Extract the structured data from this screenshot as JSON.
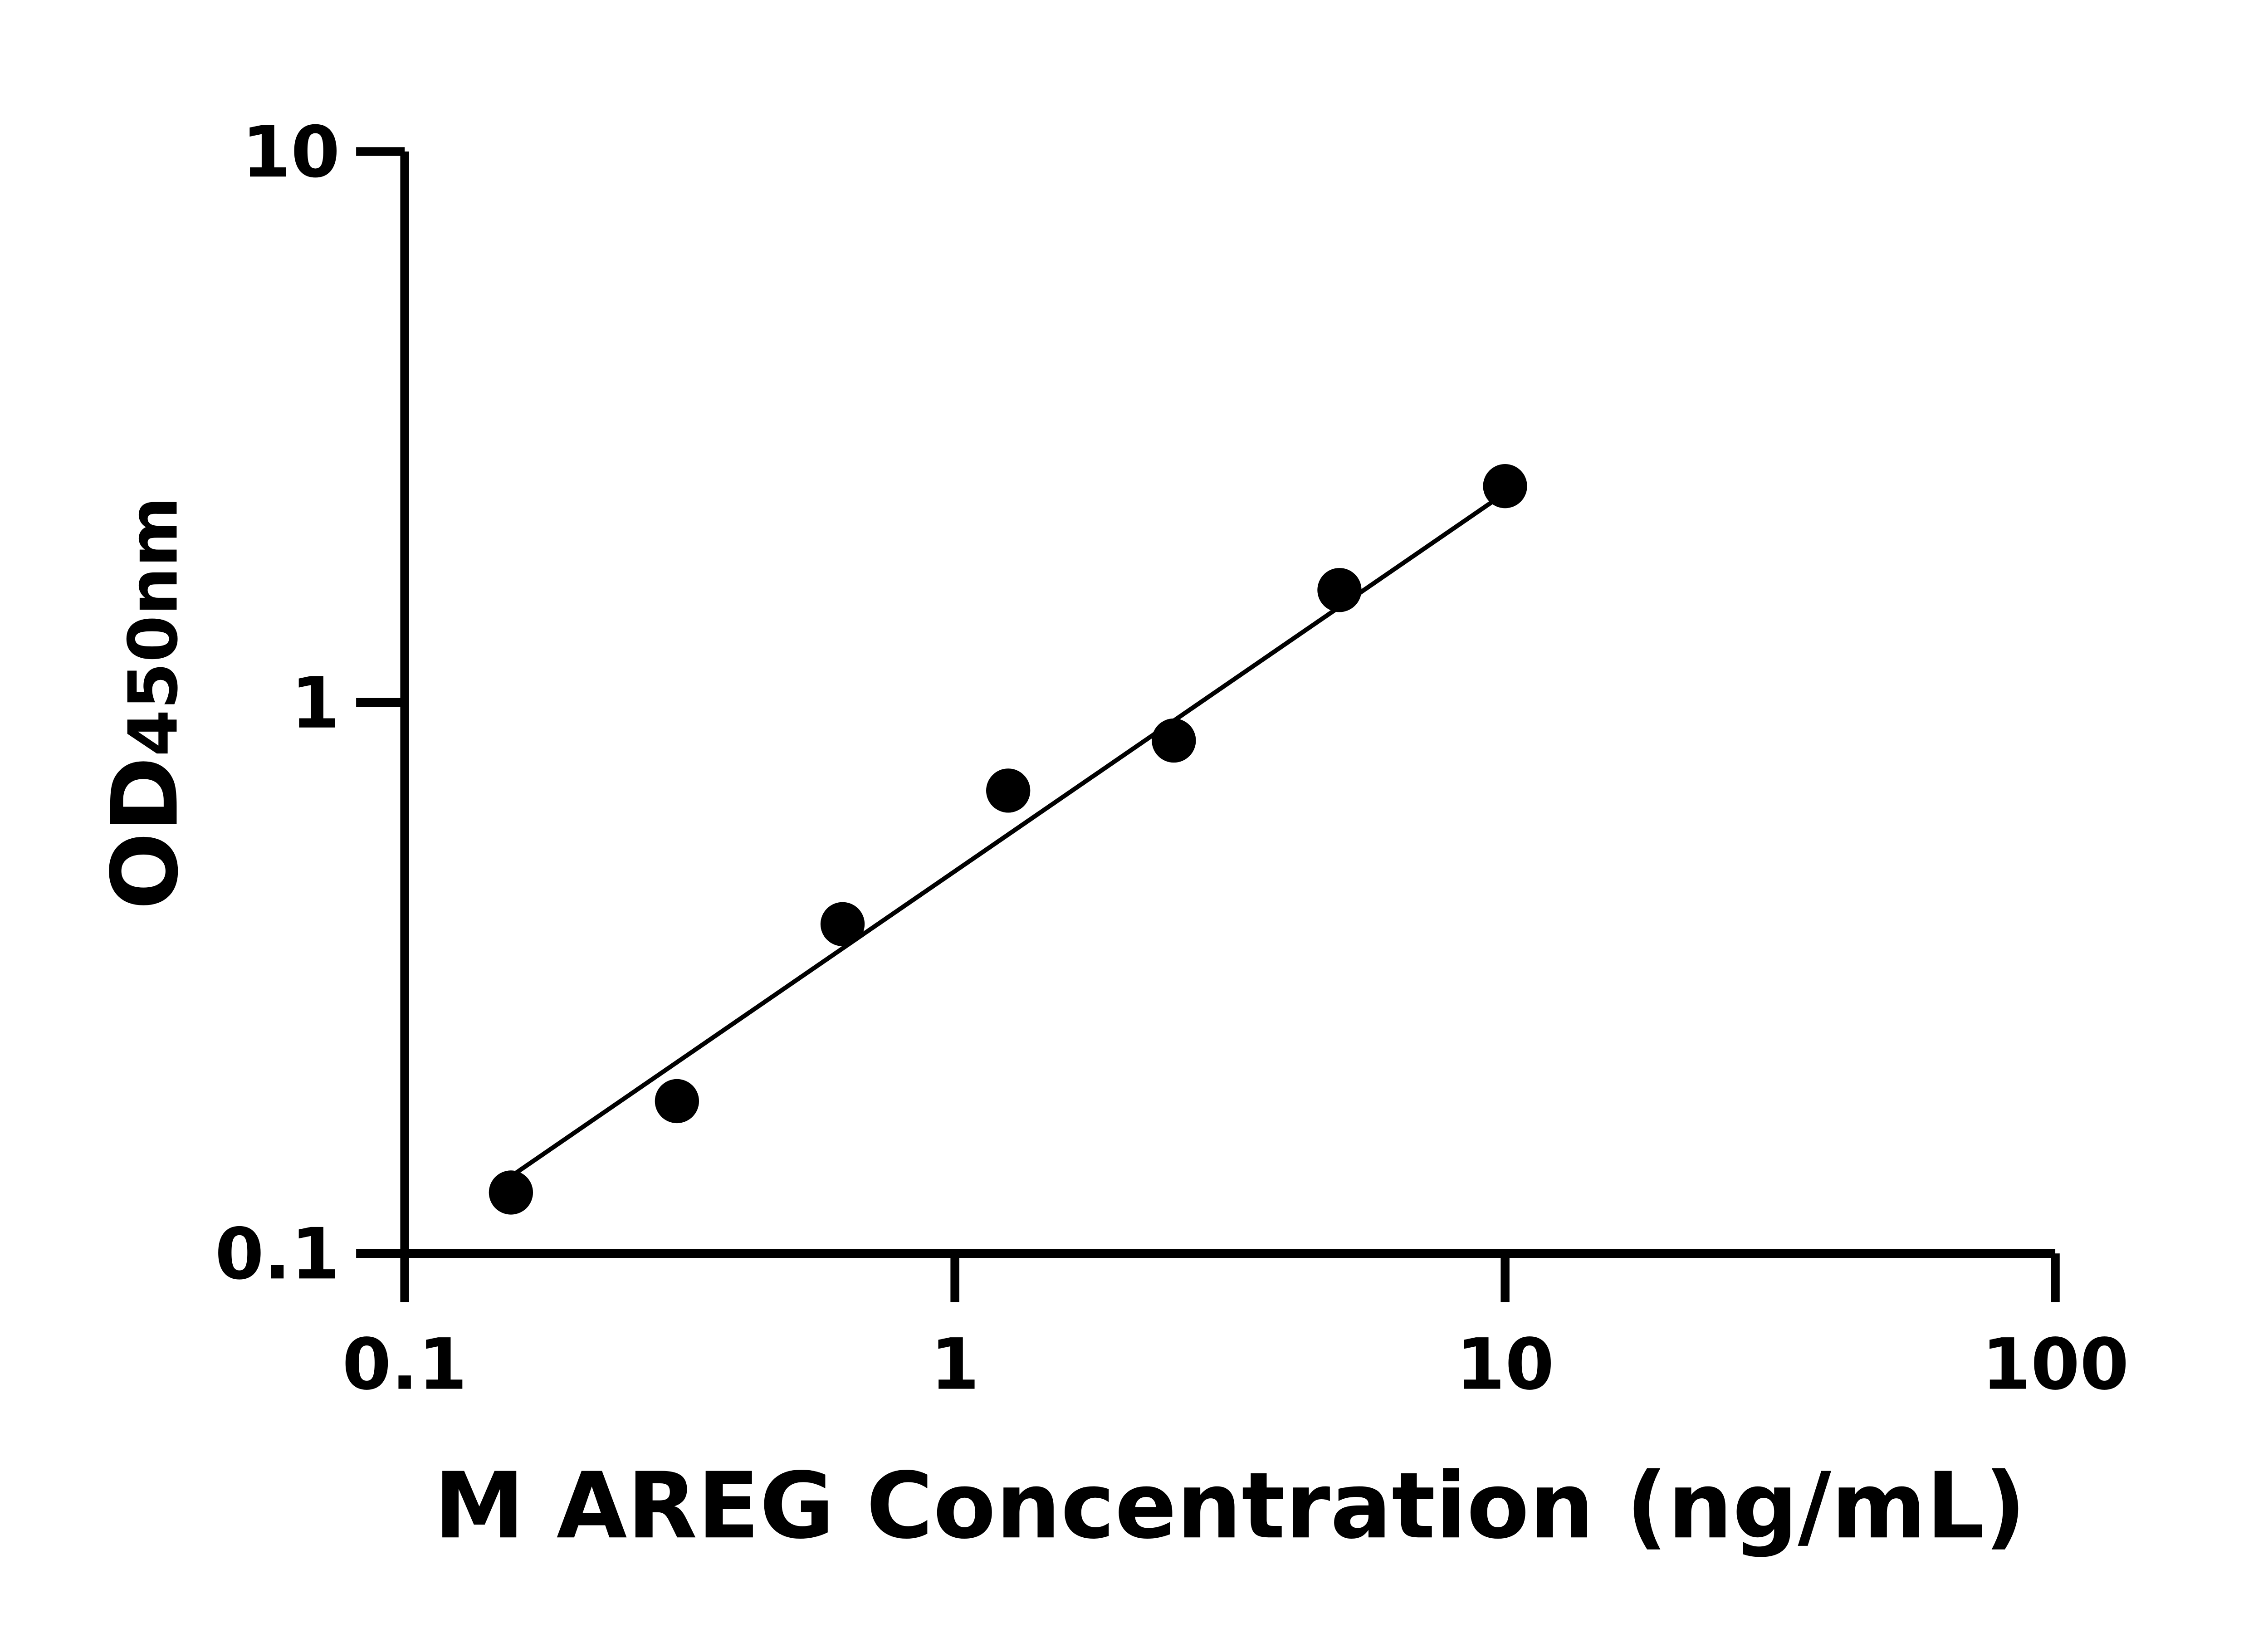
{
  "chart_data": {
    "type": "scatter",
    "title": "",
    "xlabel": "M AREG Concentration (ng/mL)",
    "ylabel_main": "OD",
    "ylabel_sub": "450nm",
    "xscale": "log",
    "yscale": "log",
    "xlim": [
      0.1,
      100
    ],
    "ylim": [
      0.1,
      10
    ],
    "xticks": [
      {
        "v": 0.1,
        "label": "0.1"
      },
      {
        "v": 1,
        "label": "1"
      },
      {
        "v": 10,
        "label": "10"
      },
      {
        "v": 100,
        "label": "100"
      }
    ],
    "yticks": [
      {
        "v": 0.1,
        "label": "0.1"
      },
      {
        "v": 1,
        "label": "1"
      },
      {
        "v": 10,
        "label": "10"
      }
    ],
    "grid": false,
    "legend": "none",
    "points": {
      "x": [
        0.156,
        0.3125,
        0.625,
        1.25,
        2.5,
        5,
        10
      ],
      "y": [
        0.129,
        0.189,
        0.396,
        0.692,
        0.853,
        1.6,
        2.47
      ]
    },
    "fit_line": {
      "x": [
        0.156,
        10
      ],
      "y": [
        0.138,
        2.4
      ]
    },
    "colors": {
      "points": "#000000",
      "line": "#000000",
      "axes": "#000000"
    }
  }
}
